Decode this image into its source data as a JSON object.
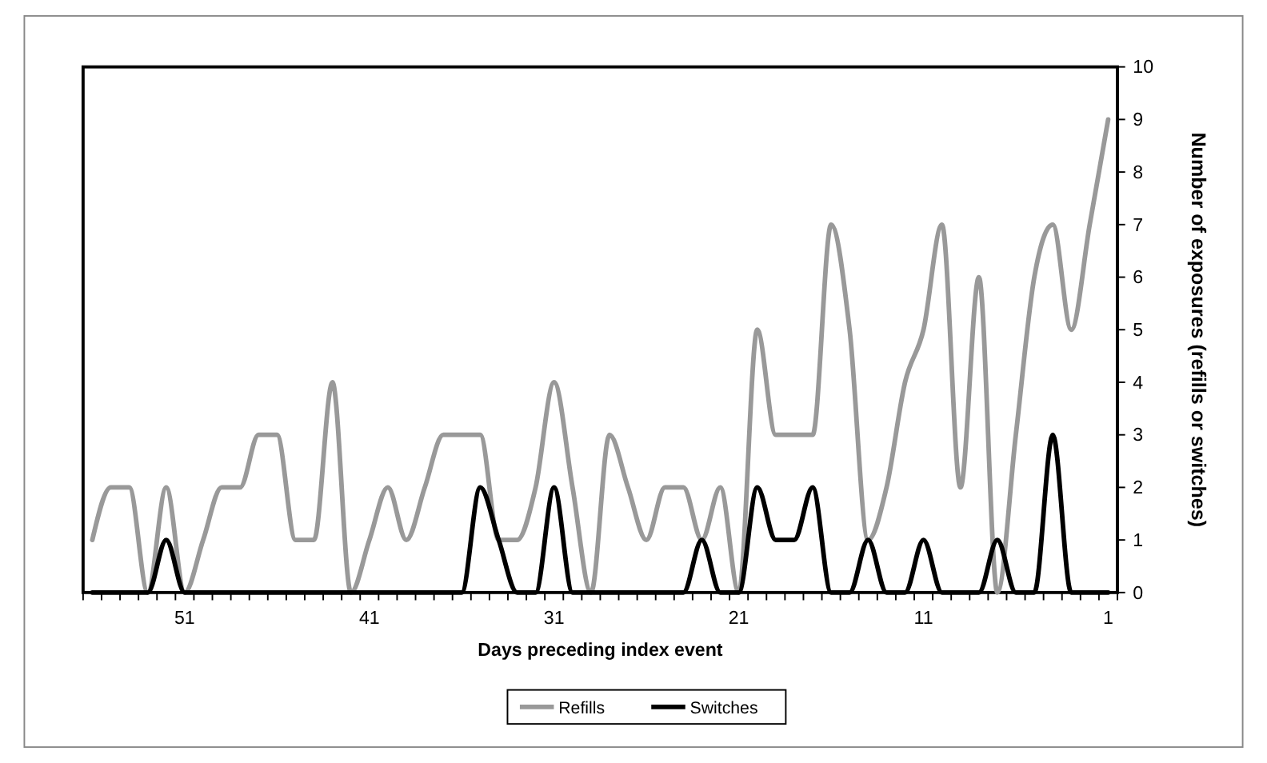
{
  "chart_data": {
    "type": "line",
    "xlabel": "Days preceding index event",
    "ylabel": "Number of exposures (refills or switches)",
    "x": [
      56,
      55,
      54,
      53,
      52,
      51,
      50,
      49,
      48,
      47,
      46,
      45,
      44,
      43,
      42,
      41,
      40,
      39,
      38,
      37,
      36,
      35,
      34,
      33,
      32,
      31,
      30,
      29,
      28,
      27,
      26,
      25,
      24,
      23,
      22,
      21,
      20,
      19,
      18,
      17,
      16,
      15,
      14,
      13,
      12,
      11,
      10,
      9,
      8,
      7,
      6,
      5,
      4,
      3,
      2,
      1
    ],
    "series": [
      {
        "name": "Refills",
        "color": "#999999",
        "values": [
          1,
          2,
          2,
          0,
          2,
          0,
          1,
          2,
          2,
          3,
          3,
          1,
          1,
          4,
          0,
          1,
          2,
          1,
          2,
          3,
          3,
          3,
          1,
          1,
          2,
          4,
          2,
          0,
          3,
          2,
          1,
          2,
          2,
          1,
          2,
          0,
          5,
          3,
          3,
          3,
          7,
          5,
          1,
          2,
          4,
          5,
          7,
          2,
          6,
          0,
          3,
          6,
          7,
          5,
          7,
          9
        ]
      },
      {
        "name": "Switches",
        "color": "#000000",
        "values": [
          0,
          0,
          0,
          0,
          1,
          0,
          0,
          0,
          0,
          0,
          0,
          0,
          0,
          0,
          0,
          0,
          0,
          0,
          0,
          0,
          0,
          2,
          1,
          0,
          0,
          2,
          0,
          0,
          0,
          0,
          0,
          0,
          0,
          1,
          0,
          0,
          2,
          1,
          1,
          2,
          0,
          0,
          1,
          0,
          0,
          1,
          0,
          0,
          0,
          1,
          0,
          0,
          3,
          0,
          0,
          0
        ]
      }
    ],
    "xlim": [
      56.5,
      0.5
    ],
    "xticks": [
      51,
      41,
      31,
      21,
      11,
      1,
      {
        "value": 56.5,
        "label": null
      },
      {
        "value": 55.5,
        "label": null
      },
      {
        "value": 54.5,
        "label": null
      },
      {
        "value": 53.5,
        "label": null
      },
      {
        "value": 52.5,
        "label": null
      },
      {
        "value": 51.5,
        "label": null
      },
      {
        "value": 50.5,
        "label": null
      },
      {
        "value": 49.5,
        "label": null
      },
      {
        "value": 48.5,
        "label": null
      },
      {
        "value": 47.5,
        "label": null
      },
      {
        "value": 46.5,
        "label": null
      },
      {
        "value": 45.5,
        "label": null
      },
      {
        "value": 44.5,
        "label": null
      },
      {
        "value": 43.5,
        "label": null
      },
      {
        "value": 42.5,
        "label": null
      },
      {
        "value": 41.5,
        "label": null
      },
      {
        "value": 40.5,
        "label": null
      },
      {
        "value": 39.5,
        "label": null
      },
      {
        "value": 38.5,
        "label": null
      },
      {
        "value": 37.5,
        "label": null
      },
      {
        "value": 36.5,
        "label": null
      },
      {
        "value": 35.5,
        "label": null
      },
      {
        "value": 34.5,
        "label": null
      },
      {
        "value": 33.5,
        "label": null
      },
      {
        "value": 32.5,
        "label": null
      },
      {
        "value": 31.5,
        "label": null
      },
      {
        "value": 30.5,
        "label": null
      },
      {
        "value": 29.5,
        "label": null
      },
      {
        "value": 28.5,
        "label": null
      },
      {
        "value": 27.5,
        "label": null
      },
      {
        "value": 26.5,
        "label": null
      },
      {
        "value": 25.5,
        "label": null
      },
      {
        "value": 24.5,
        "label": null
      },
      {
        "value": 23.5,
        "label": null
      },
      {
        "value": 22.5,
        "label": null
      },
      {
        "value": 21.5,
        "label": null
      },
      {
        "value": 20.5,
        "label": null
      },
      {
        "value": 19.5,
        "label": null
      },
      {
        "value": 18.5,
        "label": null
      },
      {
        "value": 17.5,
        "label": null
      },
      {
        "value": 16.5,
        "label": null
      },
      {
        "value": 15.5,
        "label": null
      },
      {
        "value": 14.5,
        "label": null
      },
      {
        "value": 13.5,
        "label": null
      },
      {
        "value": 12.5,
        "label": null
      },
      {
        "value": 11.5,
        "label": null
      },
      {
        "value": 10.5,
        "label": null
      },
      {
        "value": 9.5,
        "label": null
      },
      {
        "value": 8.5,
        "label": null
      },
      {
        "value": 7.5,
        "label": null
      },
      {
        "value": 6.5,
        "label": null
      },
      {
        "value": 5.5,
        "label": null
      },
      {
        "value": 4.5,
        "label": null
      },
      {
        "value": 3.5,
        "label": null
      },
      {
        "value": 2.5,
        "label": null
      },
      {
        "value": 1.5,
        "label": null
      },
      {
        "value": 0.5,
        "label": null
      }
    ],
    "ylim": [
      0,
      10
    ],
    "yticks": [
      0,
      1,
      2,
      3,
      4,
      5,
      6,
      7,
      8,
      9,
      10
    ],
    "grid": false,
    "legend": "bottom",
    "marker": "none",
    "line_style": "solid"
  }
}
